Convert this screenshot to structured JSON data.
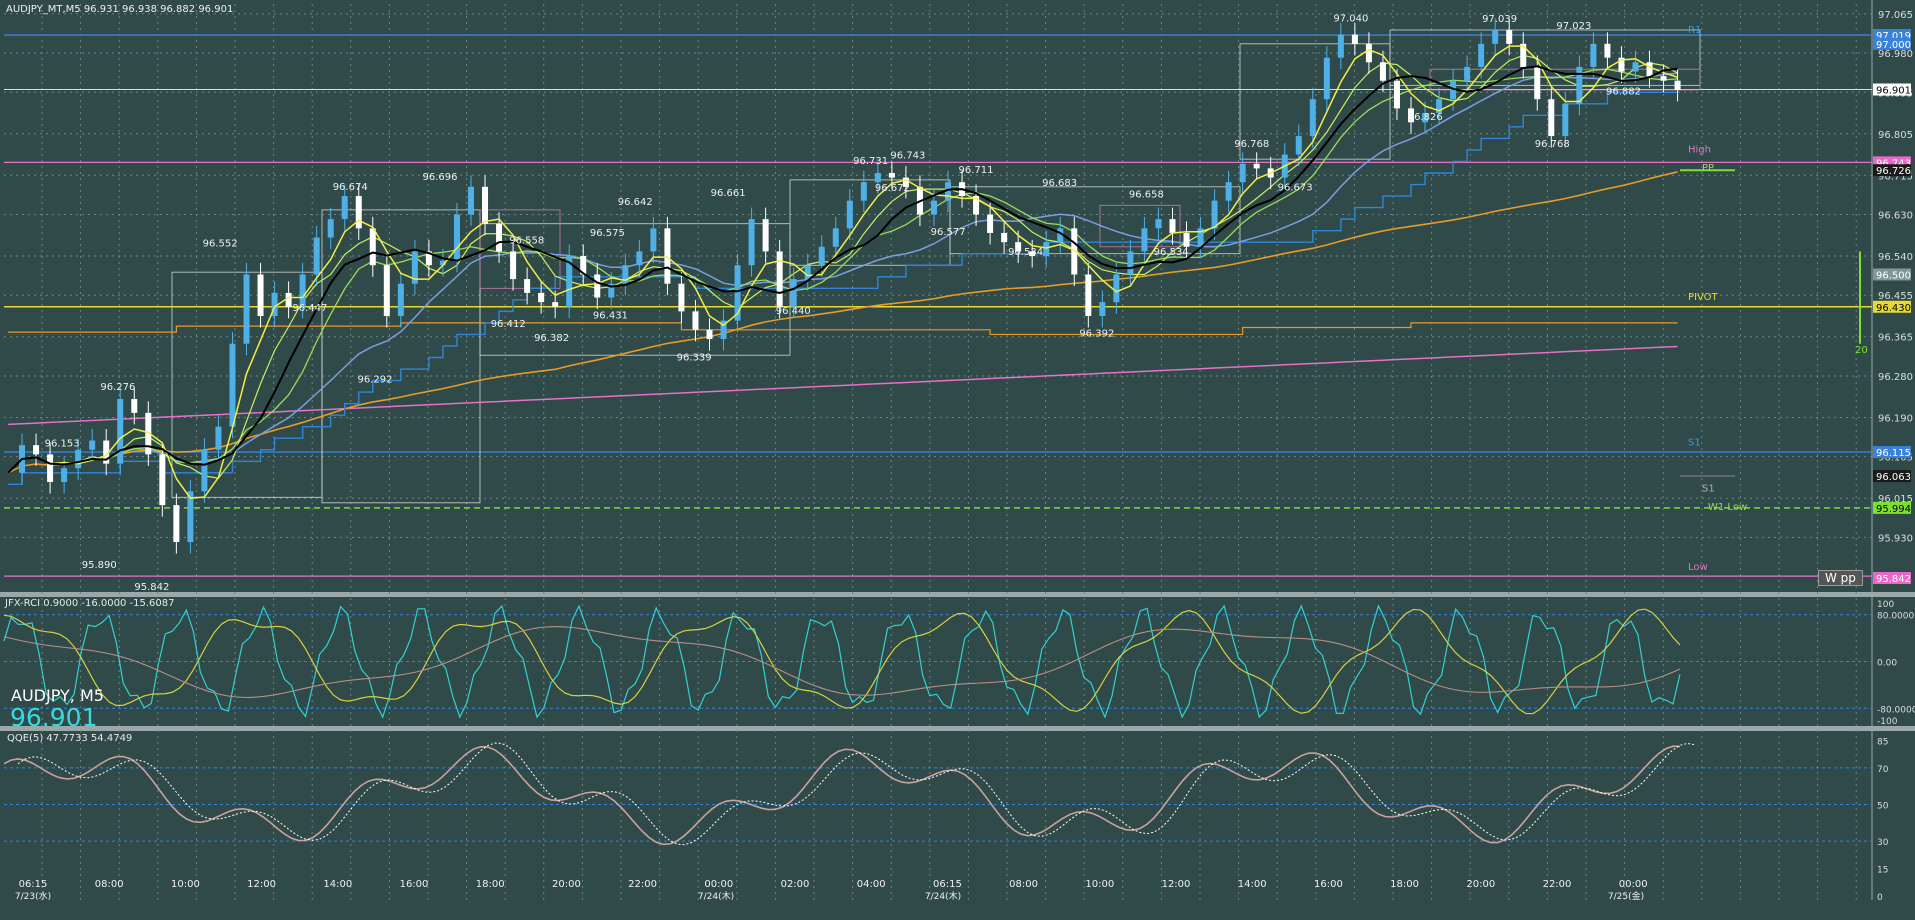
{
  "window": {
    "chart_info": "AUDJPY_MT,M5  96.931 96.938 96.882 96.901",
    "symbol_label": "AUDJPY, M5",
    "big_price": "96.901"
  },
  "colors": {
    "background": "#2f4a48",
    "grid": "#6c8584",
    "price_up": "#4fb0e8",
    "price_down": "#ffffff",
    "ma_black": "#000000",
    "ma_yellow": "#f2ee4a",
    "ma_green": "#9bdc55",
    "ma_blue": "#7a9ee0",
    "ma_step": "#2f86d8",
    "ma_orange": "#e89a2a",
    "ma_pink": "#e870c8",
    "rci_cyan": "#33d2d2",
    "rci_yellow": "#d8d040",
    "rci_brown": "#b88f86",
    "qqe_main": "#c9a39c",
    "qqe_dotted": "#ffffff"
  },
  "price_axis": {
    "ticks": [
      "97.065",
      "96.980",
      "96.895",
      "96.805",
      "96.715",
      "96.630",
      "96.540",
      "96.455",
      "96.365",
      "96.280",
      "96.190",
      "96.105",
      "96.015",
      "95.930"
    ]
  },
  "price_tags": [
    {
      "text": "97.019",
      "bg": "#3a82d8",
      "color": "#ffffff"
    },
    {
      "text": "97.000",
      "bg": "#3a82d8",
      "color": "#ffffff"
    },
    {
      "text": "96.901",
      "bg": "#ffffff",
      "color": "#000000"
    },
    {
      "text": "96.743",
      "bg": "#e868c8",
      "color": "#ffffff"
    },
    {
      "text": "96.726",
      "bg": "#1a1a1a",
      "color": "#ffffff"
    },
    {
      "text": "96.500",
      "bg": "#7f9896",
      "color": "#ffffff"
    },
    {
      "text": "96.430",
      "bg": "#e8d830",
      "color": "#000000"
    },
    {
      "text": "96.115",
      "bg": "#3a82d8",
      "color": "#ffffff"
    },
    {
      "text": "96.063",
      "bg": "#1a1a1a",
      "color": "#ffffff"
    },
    {
      "text": "95.994",
      "bg": "#7ce030",
      "color": "#000000"
    },
    {
      "text": "95.842",
      "bg": "#e868c8",
      "color": "#ffffff"
    }
  ],
  "level_labels": [
    {
      "text": "R1",
      "color": "#3a9ae8"
    },
    {
      "text": "High",
      "color": "#e870c8"
    },
    {
      "text": "PP",
      "color": "#9bdc55"
    },
    {
      "text": "PIVOT",
      "color": "#e8d830"
    },
    {
      "text": "S1",
      "color": "#3a9ae8"
    },
    {
      "text": "S1",
      "color": "#b0b0b0"
    },
    {
      "text": "W1 Low",
      "color": "#9bdc55"
    },
    {
      "text": "Low",
      "color": "#e870c8"
    }
  ],
  "w_pp_label": "W pp",
  "green_marker_label": "20",
  "chart_data": {
    "type": "line",
    "title": "AUDJPY, M5",
    "x_axis_labels": [
      "06:15",
      "7/23(水)",
      "08:00",
      "10:00",
      "12:00",
      "14:00",
      "16:00",
      "18:00",
      "20:00",
      "22:00",
      "00:00",
      "7/24(木)",
      "02:00",
      "04:00",
      "06:15",
      "7/24(木)",
      "08:00",
      "10:00",
      "12:00",
      "14:00",
      "16:00",
      "18:00",
      "20:00",
      "22:00",
      "00:00",
      "7/25(金)"
    ],
    "ylim": [
      95.842,
      97.069
    ],
    "last": 96.901,
    "price_series": [
      96.07,
      96.13,
      96.11,
      96.05,
      96.08,
      96.12,
      96.14,
      96.09,
      96.23,
      96.2,
      96.11,
      96.0,
      95.92,
      96.03,
      96.12,
      96.17,
      96.35,
      96.5,
      96.41,
      96.46,
      96.43,
      96.5,
      96.58,
      96.62,
      96.67,
      96.6,
      96.52,
      96.41,
      96.48,
      96.55,
      96.52,
      96.53,
      96.63,
      96.69,
      96.61,
      96.55,
      96.49,
      96.46,
      96.44,
      96.43,
      96.54,
      96.5,
      96.45,
      96.48,
      96.52,
      96.55,
      96.6,
      96.48,
      96.42,
      96.38,
      96.36,
      96.4,
      96.52,
      96.62,
      96.55,
      96.43,
      96.49,
      96.52,
      96.56,
      96.6,
      96.66,
      96.7,
      96.72,
      96.71,
      96.69,
      96.63,
      96.66,
      96.7,
      96.67,
      96.63,
      96.59,
      96.57,
      96.55,
      96.54,
      96.57,
      96.6,
      96.5,
      96.41,
      96.44,
      96.5,
      96.55,
      96.6,
      96.62,
      96.59,
      96.56,
      96.6,
      96.66,
      96.7,
      96.74,
      96.73,
      96.71,
      96.76,
      96.8,
      96.88,
      96.97,
      97.02,
      97.0,
      96.96,
      96.92,
      96.86,
      96.83,
      96.85,
      96.88,
      96.92,
      96.95,
      97.0,
      97.03,
      97.0,
      96.95,
      96.88,
      96.8,
      96.87,
      96.95,
      97.0,
      96.97,
      96.94,
      96.96,
      96.93,
      96.92,
      96.9
    ],
    "annotations": [
      {
        "label": "96.153",
        "x": "07:10",
        "y": 96.153
      },
      {
        "label": "96.276",
        "x": "08:40",
        "y": 96.276
      },
      {
        "label": "95.890",
        "x": "08:10",
        "y": 95.89
      },
      {
        "label": "95.842",
        "x": "09:35",
        "y": 95.842
      },
      {
        "label": "96.552",
        "x": "11:25",
        "y": 96.552
      },
      {
        "label": "96.447",
        "x": "13:50",
        "y": 96.447
      },
      {
        "label": "96.674",
        "x": "14:55",
        "y": 96.674
      },
      {
        "label": "96.292",
        "x": "15:35",
        "y": 96.292
      },
      {
        "label": "96.696",
        "x": "17:20",
        "y": 96.696
      },
      {
        "label": "96.558",
        "x": "19:40",
        "y": 96.558
      },
      {
        "label": "96.412",
        "x": "19:10",
        "y": 96.412
      },
      {
        "label": "96.382",
        "x": "20:20",
        "y": 96.382
      },
      {
        "label": "96.575",
        "x": "21:50",
        "y": 96.575
      },
      {
        "label": "96.642",
        "x": "22:35",
        "y": 96.642
      },
      {
        "label": "96.431",
        "x": "21:55",
        "y": 96.431
      },
      {
        "label": "96.339",
        "x": "00:10",
        "y": 96.339
      },
      {
        "label": "96.661",
        "x": "01:05",
        "y": 96.661
      },
      {
        "label": "96.440",
        "x": "02:50",
        "y": 96.44
      },
      {
        "label": "96.731",
        "x": "04:55",
        "y": 96.731
      },
      {
        "label": "96.743",
        "x": "05:55",
        "y": 96.743
      },
      {
        "label": "96.672",
        "x": "05:30",
        "y": 96.672
      },
      {
        "label": "96.577",
        "x": "07:00",
        "y": 96.577
      },
      {
        "label": "96.711",
        "x": "07:45",
        "y": 96.711
      },
      {
        "label": "96.534",
        "x": "09:05",
        "y": 96.534
      },
      {
        "label": "96.683",
        "x": "10:00",
        "y": 96.683
      },
      {
        "label": "96.392",
        "x": "11:00",
        "y": 96.392
      },
      {
        "label": "96.658",
        "x": "12:20",
        "y": 96.658
      },
      {
        "label": "96.534",
        "x": "13:00",
        "y": 96.534
      },
      {
        "label": "96.768",
        "x": "15:10",
        "y": 96.768
      },
      {
        "label": "96.673",
        "x": "16:20",
        "y": 96.673
      },
      {
        "label": "97.040",
        "x": "17:50",
        "y": 97.04
      },
      {
        "label": "96.826",
        "x": "19:50",
        "y": 96.826
      },
      {
        "label": "97.039",
        "x": "21:50",
        "y": 97.039
      },
      {
        "label": "96.768",
        "x": "23:15",
        "y": 96.768
      },
      {
        "label": "97.023",
        "x": "23:50",
        "y": 97.023
      },
      {
        "label": "96.882",
        "x": "01:10",
        "y": 96.882
      }
    ]
  },
  "indicators": {
    "rci": {
      "label": "JFX-RCI 0.9000 -16.0000 -15.6087",
      "levels": [
        "100",
        "80.0000",
        "0.00",
        "-80.0000",
        "-100"
      ]
    },
    "qqe": {
      "label": "QQE(5) 47.7733 54.4749",
      "levels": [
        "85",
        "70",
        "50",
        "30",
        "15",
        "0"
      ]
    }
  }
}
